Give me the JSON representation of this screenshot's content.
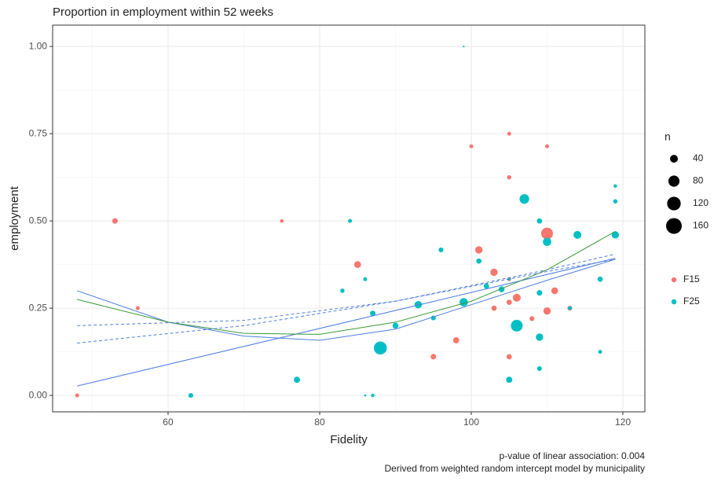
{
  "chart_data": {
    "type": "scatter",
    "title": "Proportion in employment within 52 weeks",
    "x_label": "Fidelity",
    "y_label": "employment",
    "caption": [
      "p-value of linear association: 0.004",
      "Derived from weighted random intercept model by municipality"
    ],
    "xlim": [
      44.77,
      122.9
    ],
    "ylim": [
      -0.047,
      1.061
    ],
    "xticks": [
      60,
      80,
      100,
      120
    ],
    "yticks": [
      {
        "value": 0,
        "label": "0.00"
      },
      {
        "value": 0.25,
        "label": "0.25"
      },
      {
        "value": 0.5,
        "label": "0.50"
      },
      {
        "value": 0.75,
        "label": "0.75"
      },
      {
        "value": 1,
        "label": "1.00"
      }
    ],
    "x_minor": [
      50,
      70,
      90,
      110
    ],
    "y_minor": [
      0.125,
      0.375,
      0.625,
      0.875
    ],
    "grid": true,
    "series": [
      {
        "name": "F15",
        "color": "#F8766D",
        "x": [
          48,
          53,
          56,
          75,
          85,
          95,
          98,
          100,
          101,
          103,
          103,
          105,
          105,
          105,
          105,
          105,
          106,
          108,
          110,
          110,
          110,
          111,
          113
        ],
        "values": [
          0,
          0.5,
          0.25,
          0.5,
          0.375,
          0.111,
          0.158,
          0.714,
          0.417,
          0.353,
          0.25,
          0.75,
          0.625,
          0.333,
          0.267,
          0.111,
          0.28,
          0.22,
          0.714,
          0.464,
          0.242,
          0.3,
          0.25
        ],
        "sizes": [
          10,
          20,
          10,
          8,
          30,
          20,
          25,
          10,
          35,
          35,
          18,
          10,
          12,
          10,
          18,
          18,
          40,
          15,
          10,
          90,
          35,
          30,
          15
        ]
      },
      {
        "name": "F25",
        "color": "#00BFC4",
        "x": [
          63,
          77,
          83,
          84,
          86,
          86,
          87,
          87,
          88,
          90,
          93,
          95,
          96,
          99,
          99,
          101,
          102,
          104,
          105,
          105,
          106,
          107,
          109,
          109,
          109,
          109,
          110,
          113,
          114,
          117,
          117,
          119,
          119,
          119
        ],
        "values": [
          0,
          0.045,
          0.3,
          0.5,
          0.333,
          0,
          0,
          0.235,
          0.136,
          0.2,
          0.26,
          0.222,
          0.417,
          1,
          0.267,
          0.385,
          0.313,
          0.304,
          0.333,
          0.045,
          0.2,
          0.563,
          0.5,
          0.294,
          0.167,
          0.077,
          0.44,
          0.25,
          0.46,
          0.333,
          0.125,
          0.6,
          0.556,
          0.46
        ],
        "sizes": [
          15,
          25,
          12,
          10,
          10,
          3,
          8,
          20,
          110,
          22,
          35,
          15,
          15,
          2,
          45,
          18,
          18,
          22,
          5,
          25,
          90,
          60,
          18,
          20,
          35,
          15,
          45,
          10,
          40,
          18,
          10,
          8,
          12,
          35
        ]
      }
    ],
    "fits": [
      {
        "color": "#4f7fe0",
        "dashed": false,
        "x": [
          48,
          119
        ],
        "values": [
          0.027,
          0.393
        ]
      },
      {
        "color": "#4f7fe0",
        "dashed": false,
        "x": [
          48,
          60,
          70,
          80,
          90,
          100,
          110,
          119
        ],
        "values": [
          0.3,
          0.21,
          0.17,
          0.158,
          0.19,
          0.26,
          0.33,
          0.39
        ]
      },
      {
        "color": "#3a9a3a",
        "dashed": false,
        "x": [
          48,
          60,
          70,
          80,
          90,
          100,
          110,
          119
        ],
        "values": [
          0.275,
          0.21,
          0.178,
          0.175,
          0.21,
          0.27,
          0.36,
          0.47
        ]
      },
      {
        "color": "#4f7fe0",
        "dashed": true,
        "x": [
          48,
          70,
          90,
          110,
          119
        ],
        "values": [
          0.2,
          0.215,
          0.27,
          0.36,
          0.405
        ]
      },
      {
        "color": "#4f7fe0",
        "dashed": true,
        "x": [
          48,
          70,
          90,
          110,
          119
        ],
        "values": [
          0.15,
          0.2,
          0.27,
          0.355,
          0.39
        ]
      }
    ],
    "size_legend": {
      "title": "n",
      "values": [
        40,
        80,
        120,
        160
      ]
    }
  }
}
